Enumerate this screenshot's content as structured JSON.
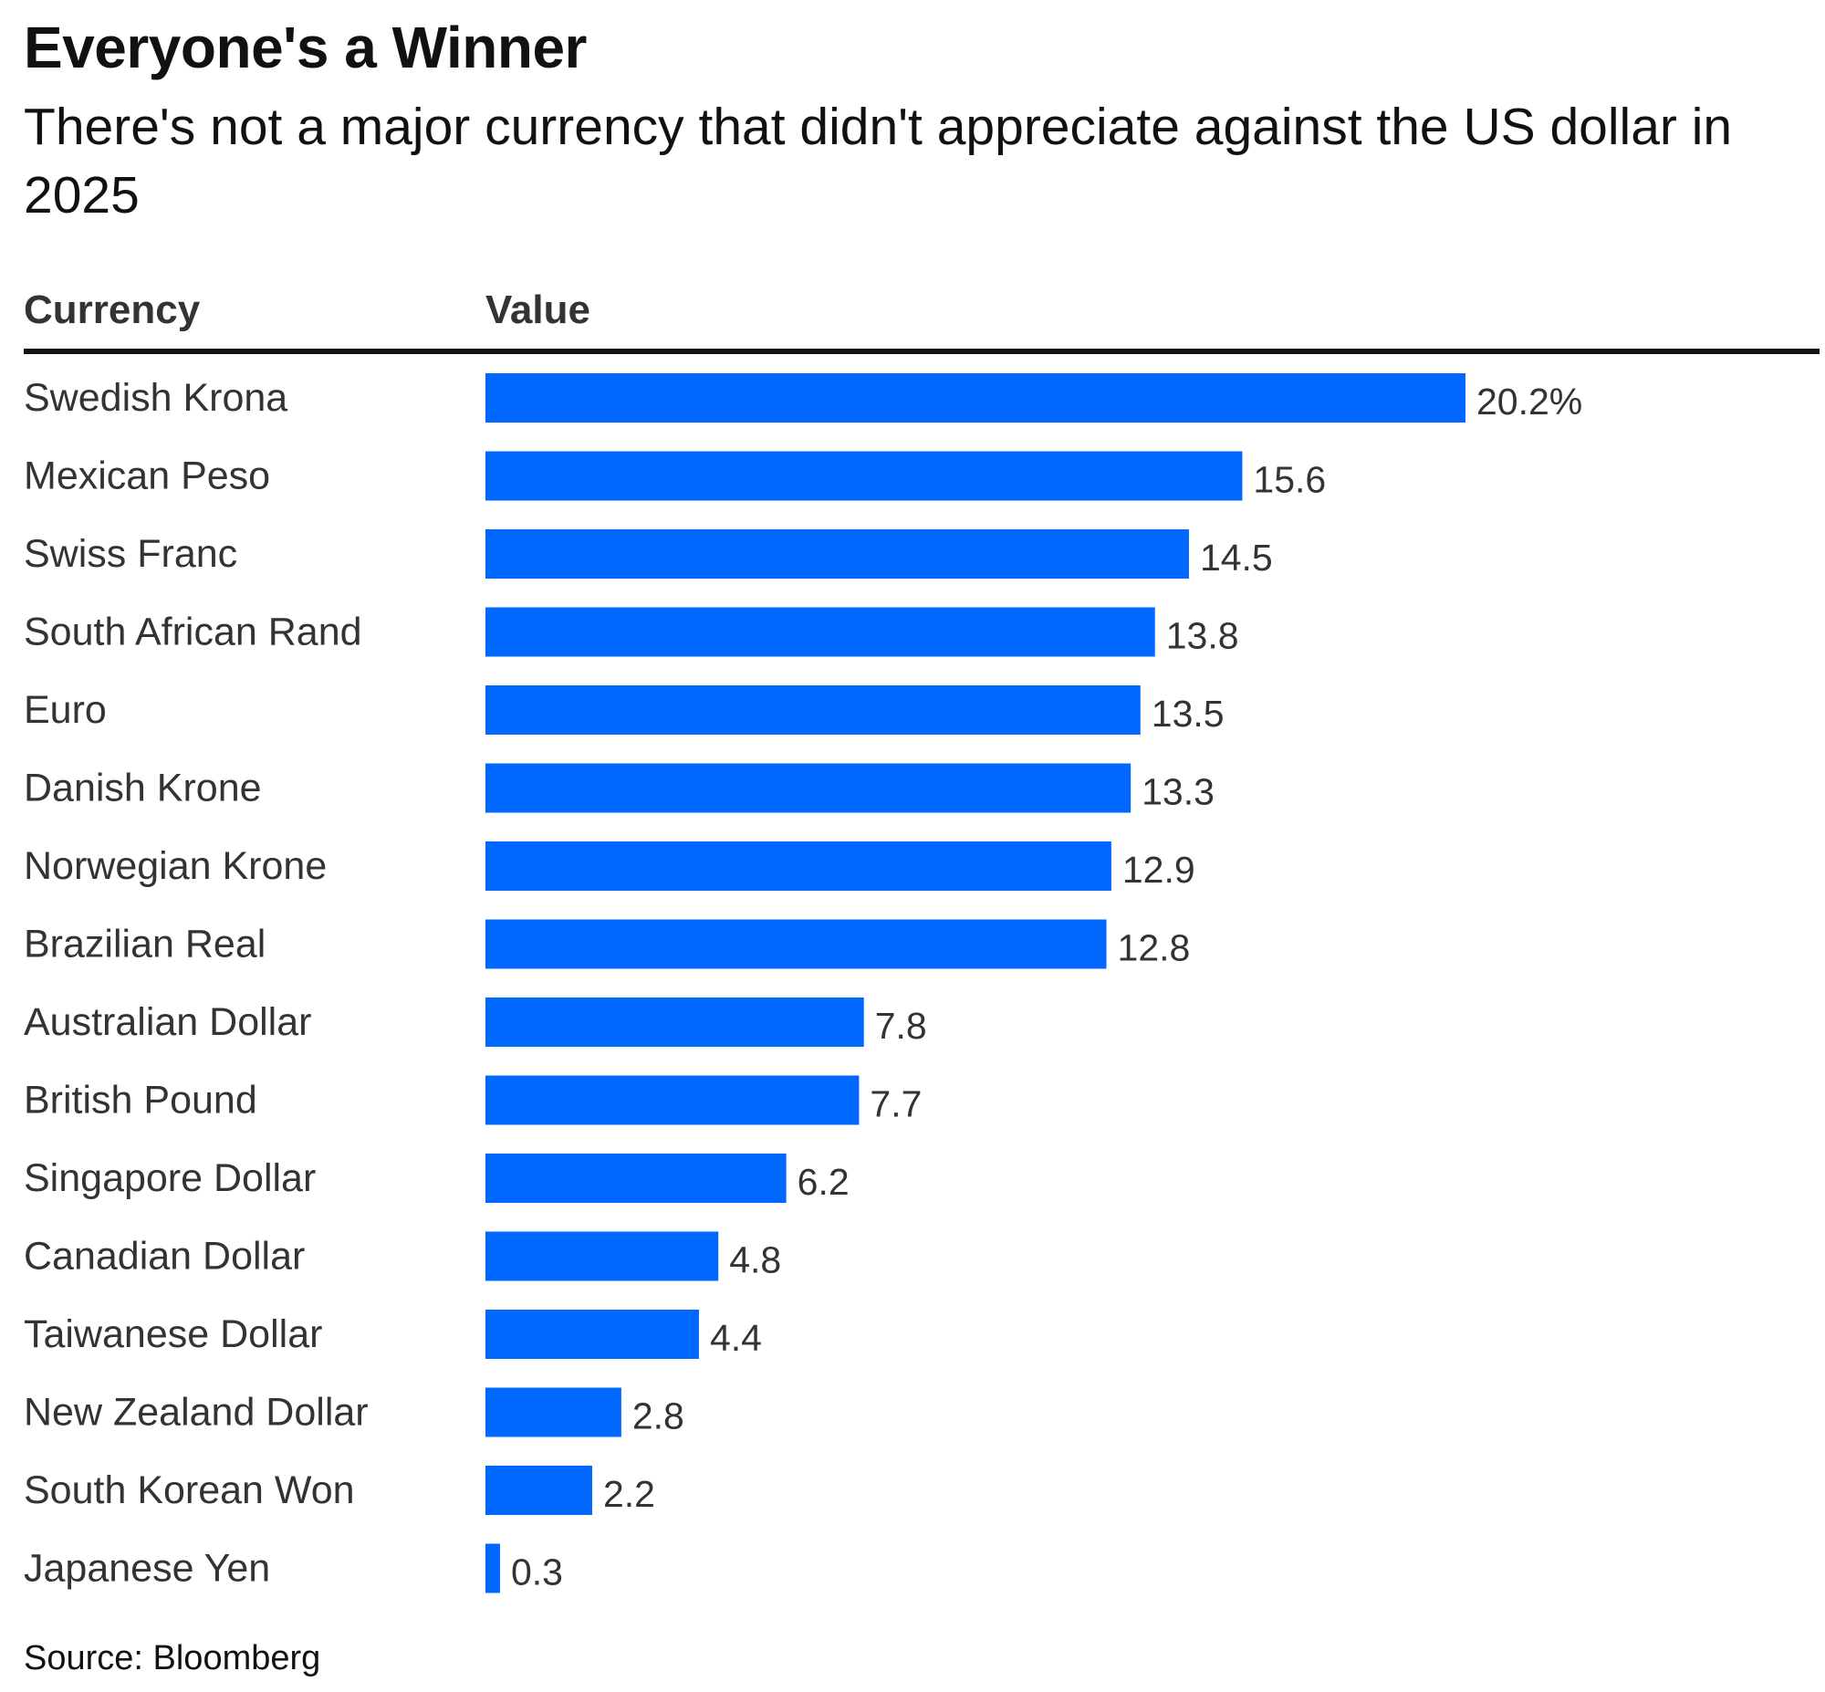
{
  "title": "Everyone's a Winner",
  "subtitle": "There's not a major currency that didn't appreciate against the US dollar in 2025",
  "source": "Source: Bloomberg",
  "colors": {
    "bar": "#0068ff",
    "text": "#111111",
    "header_text": "#333333",
    "label_text": "#333333"
  },
  "chart_data": {
    "type": "bar",
    "orientation": "horizontal",
    "column_headers": [
      "Currency",
      "Value"
    ],
    "categories": [
      "Swedish Krona",
      "Mexican Peso",
      "Swiss Franc",
      "South African Rand",
      "Euro",
      "Danish Krone",
      "Norwegian Krone",
      "Brazilian Real",
      "Australian Dollar",
      "British Pound",
      "Singapore Dollar",
      "Canadian Dollar",
      "Taiwanese Dollar",
      "New Zealand Dollar",
      "South Korean Won",
      "Japanese Yen"
    ],
    "values": [
      20.2,
      15.6,
      14.5,
      13.8,
      13.5,
      13.3,
      12.9,
      12.8,
      7.8,
      7.7,
      6.2,
      4.8,
      4.4,
      2.8,
      2.2,
      0.3
    ],
    "value_labels": [
      "20.2%",
      "15.6",
      "14.5",
      "13.8",
      "13.5",
      "13.3",
      "12.9",
      "12.8",
      "7.8",
      "7.7",
      "6.2",
      "4.8",
      "4.4",
      "2.8",
      "2.2",
      "0.3"
    ],
    "xlim": [
      0,
      20.2
    ],
    "grid": false,
    "legend": "none"
  }
}
